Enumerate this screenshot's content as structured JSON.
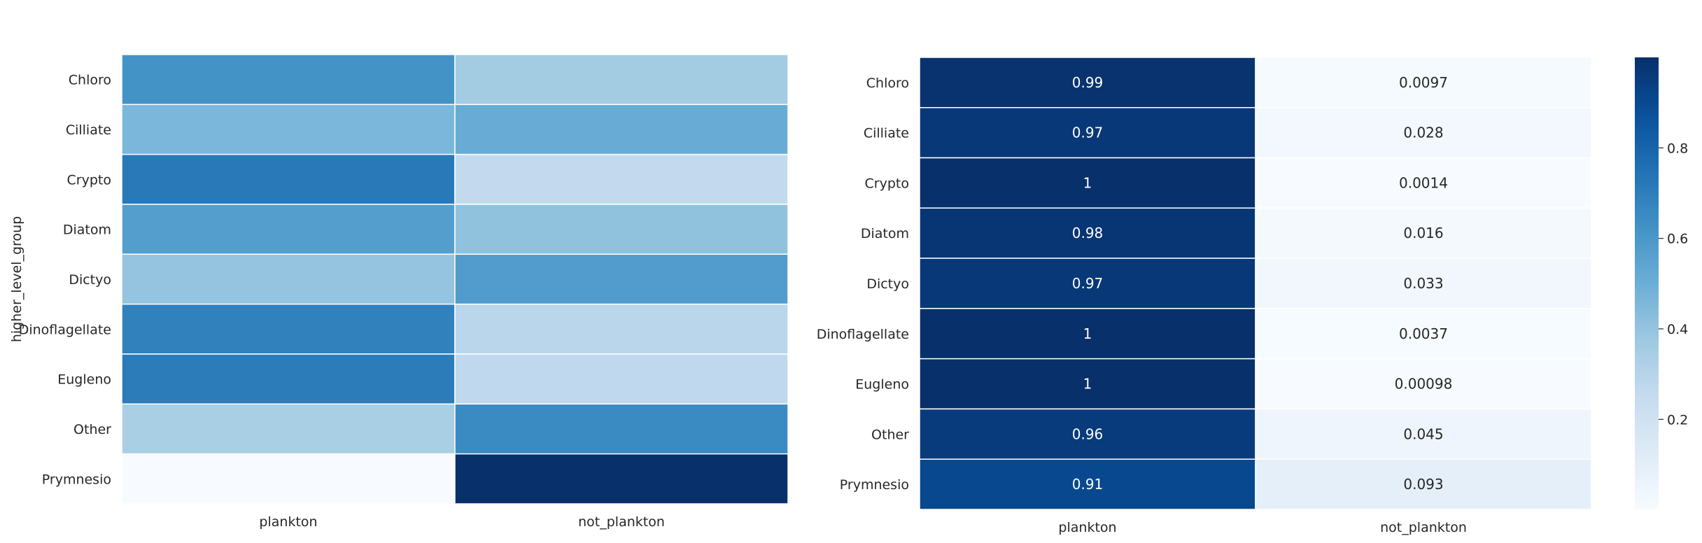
{
  "chart_data": [
    {
      "type": "heatmap",
      "title": "",
      "xlabel": "",
      "ylabel": "higher_level_group",
      "x_categories": [
        "plankton",
        "not_plankton"
      ],
      "y_categories": [
        "Chloro",
        "Cilliate",
        "Crypto",
        "Diatom",
        "Dictyo",
        "Dinoflagellate",
        "Eugleno",
        "Other",
        "Prymnesio"
      ],
      "values": [
        [
          0.62,
          0.36
        ],
        [
          0.46,
          0.51
        ],
        [
          0.72,
          0.26
        ],
        [
          0.57,
          0.41
        ],
        [
          0.4,
          0.58
        ],
        [
          0.69,
          0.29
        ],
        [
          0.71,
          0.27
        ],
        [
          0.34,
          0.65
        ],
        [
          0.0,
          1.0
        ]
      ],
      "value_range": [
        0,
        1
      ],
      "colormap": "Blues",
      "annotations": false,
      "colorbar": false
    },
    {
      "type": "heatmap",
      "title": "",
      "xlabel": "",
      "ylabel": "",
      "x_categories": [
        "plankton",
        "not_plankton"
      ],
      "y_categories": [
        "Chloro",
        "Cilliate",
        "Crypto",
        "Diatom",
        "Dictyo",
        "Dinoflagellate",
        "Eugleno",
        "Other",
        "Prymnesio"
      ],
      "values": [
        [
          0.99,
          0.0097
        ],
        [
          0.97,
          0.028
        ],
        [
          1,
          0.0014
        ],
        [
          0.98,
          0.016
        ],
        [
          0.97,
          0.033
        ],
        [
          1,
          0.0037
        ],
        [
          1,
          0.00098
        ],
        [
          0.96,
          0.045
        ],
        [
          0.91,
          0.093
        ]
      ],
      "value_labels": [
        [
          "0.99",
          "0.0097"
        ],
        [
          "0.97",
          "0.028"
        ],
        [
          "1",
          "0.0014"
        ],
        [
          "0.98",
          "0.016"
        ],
        [
          "0.97",
          "0.033"
        ],
        [
          "1",
          "0.0037"
        ],
        [
          "1",
          "0.00098"
        ],
        [
          "0.96",
          "0.045"
        ],
        [
          "0.91",
          "0.093"
        ]
      ],
      "value_range": [
        0.00098,
        1
      ],
      "colormap": "Blues",
      "annotations": true,
      "colorbar": true,
      "colorbar_ticks": [
        0.2,
        0.4,
        0.6,
        0.8
      ],
      "colorbar_tick_labels": [
        "0.2",
        "0.4",
        "0.6",
        "0.8"
      ]
    }
  ]
}
